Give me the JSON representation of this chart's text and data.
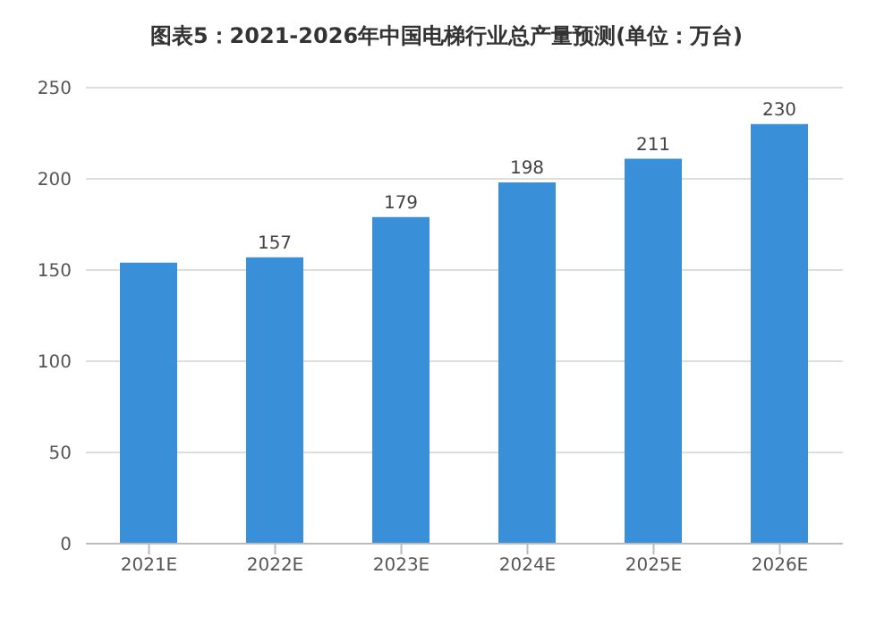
{
  "chart_data": {
    "type": "bar",
    "title": "图表5：2021-2026年中国电梯行业总产量预测(单位：万台)",
    "categories": [
      "2021E",
      "2022E",
      "2023E",
      "2024E",
      "2025E",
      "2026E"
    ],
    "values": [
      154,
      157,
      179,
      198,
      211,
      230
    ],
    "value_labels": [
      null,
      "157",
      "179",
      "198",
      "211",
      "230"
    ],
    "color": "#3a8fd9",
    "ylim": [
      0,
      250
    ],
    "yticks": [
      0,
      50,
      100,
      150,
      200,
      250
    ],
    "grid": "y"
  }
}
